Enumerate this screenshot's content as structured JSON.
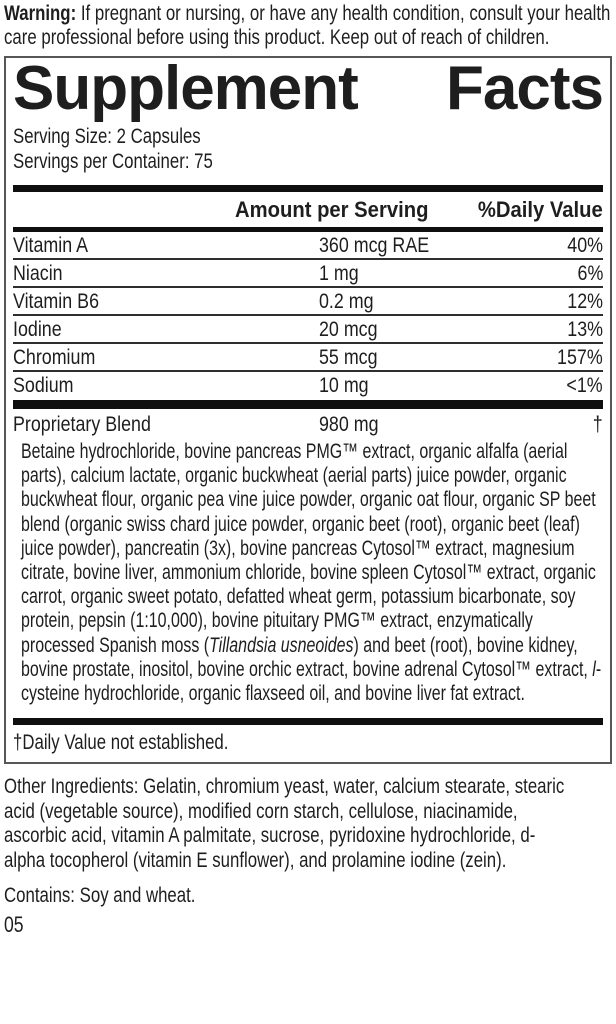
{
  "warning": {
    "label": "Warning:",
    "text": " If pregnant or nursing, or have any health condition, consult your health care professional before using this product. Keep out of reach of children."
  },
  "panel": {
    "title": {
      "left": "Supplement",
      "right": "Facts"
    },
    "serving_size": "Serving Size: 2 Capsules",
    "servings_per_container": "Servings per Container: 75",
    "columns": {
      "amount": "Amount per Serving",
      "daily_value": "%Daily Value"
    },
    "nutrients": [
      {
        "name": "Vitamin A",
        "amount": "360 mcg RAE",
        "dv": "40%"
      },
      {
        "name": "Niacin",
        "amount": "1 mg",
        "dv": "6%"
      },
      {
        "name": "Vitamin B6",
        "amount": "0.2 mg",
        "dv": "12%"
      },
      {
        "name": "Iodine",
        "amount": "20 mcg",
        "dv": "13%"
      },
      {
        "name": "Chromium",
        "amount": "55 mcg",
        "dv": "157%"
      },
      {
        "name": "Sodium",
        "amount": "10 mg",
        "dv": "<1%"
      }
    ],
    "blend": {
      "name": "Proprietary Blend",
      "amount": "980 mg",
      "daily_value": "†"
    },
    "blend_description": [
      {
        "text": "Betaine hydrochloride, bovine pancreas PMG™ extract, organic alfalfa (aerial parts), calcium lactate, organic buckwheat (aerial parts) juice powder, organic buckwheat flour, organic pea vine juice powder, organic oat flour, organic SP beet blend (organic swiss chard juice powder, organic beet (root), organic beet (leaf) juice powder), pancreatin (3x), bovine pancreas Cytosol™ extract, magnesium citrate, bovine liver, ammonium chloride, bovine spleen Cytosol™ extract, organic carrot, organic sweet potato, defatted wheat germ, potassium bicarbonate, soy protein, pepsin (1:10,000), bovine pituitary PMG™ extract, enzymatically processed Spanish moss (",
        "italic": false
      },
      {
        "text": "Tillandsia usneoides",
        "italic": true
      },
      {
        "text": ") and beet (root), bovine kidney, bovine prostate, inositol, bovine orchic extract, bovine adrenal Cytosol™ extract, ",
        "italic": false
      },
      {
        "text": "l",
        "italic": true
      },
      {
        "text": "-cysteine hydrochloride, organic flaxseed oil, and bovine liver fat extract.",
        "italic": false
      }
    ],
    "footnote": "†Daily Value not established."
  },
  "other_ingredients": "Other Ingredients: Gelatin, chromium yeast, water, calcium stearate, stearic acid (vegetable source), modified corn starch, cellulose, niacinamide, ascorbic acid, vitamin A palmitate, sucrose, pyridoxine hydrochloride, d-alpha tocopherol (vitamin E sunflower), and prolamine iodine (zein).",
  "contains": "Contains: Soy and wheat.",
  "page_number": "05",
  "colors": {
    "text": "#1e1e1e",
    "bar": "#0f0f0f",
    "box_border": "#575757",
    "background": "#ffffff"
  }
}
